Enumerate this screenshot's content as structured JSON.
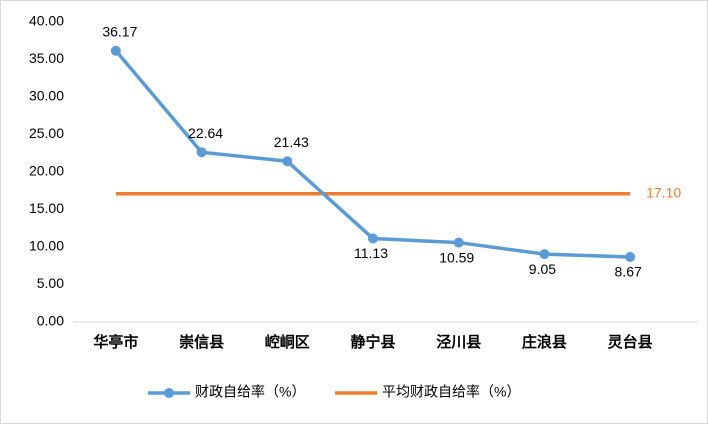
{
  "chart_data": {
    "type": "line",
    "categories": [
      "华亭市",
      "崇信县",
      "崆峒区",
      "静宁县",
      "泾川县",
      "庄浪县",
      "灵台县"
    ],
    "series": [
      {
        "name": "财政自给率（%）",
        "color": "#5b9bd5",
        "marker": true,
        "values": [
          36.17,
          22.64,
          21.43,
          11.13,
          10.59,
          9.05,
          8.67
        ]
      },
      {
        "name": "平均财政自给率（%）",
        "color": "#ed7d31",
        "marker": false,
        "values": [
          17.1,
          17.1,
          17.1,
          17.1,
          17.1,
          17.1,
          17.1
        ],
        "value_labels": [
          null,
          null,
          null,
          null,
          null,
          null,
          "17.10"
        ]
      }
    ],
    "ylim": [
      0,
      40
    ],
    "yticks": [
      {
        "value": 0,
        "label": "0.00"
      },
      {
        "value": 5,
        "label": "5.00"
      },
      {
        "value": 10,
        "label": "10.00"
      },
      {
        "value": 15,
        "label": "15.00"
      },
      {
        "value": 20,
        "label": "20.00"
      },
      {
        "value": 25,
        "label": "25.00"
      },
      {
        "value": 30,
        "label": "30.00"
      },
      {
        "value": 35,
        "label": "35.00"
      },
      {
        "value": 40,
        "label": "40.00"
      }
    ],
    "grid": false,
    "legend": "bottom"
  }
}
